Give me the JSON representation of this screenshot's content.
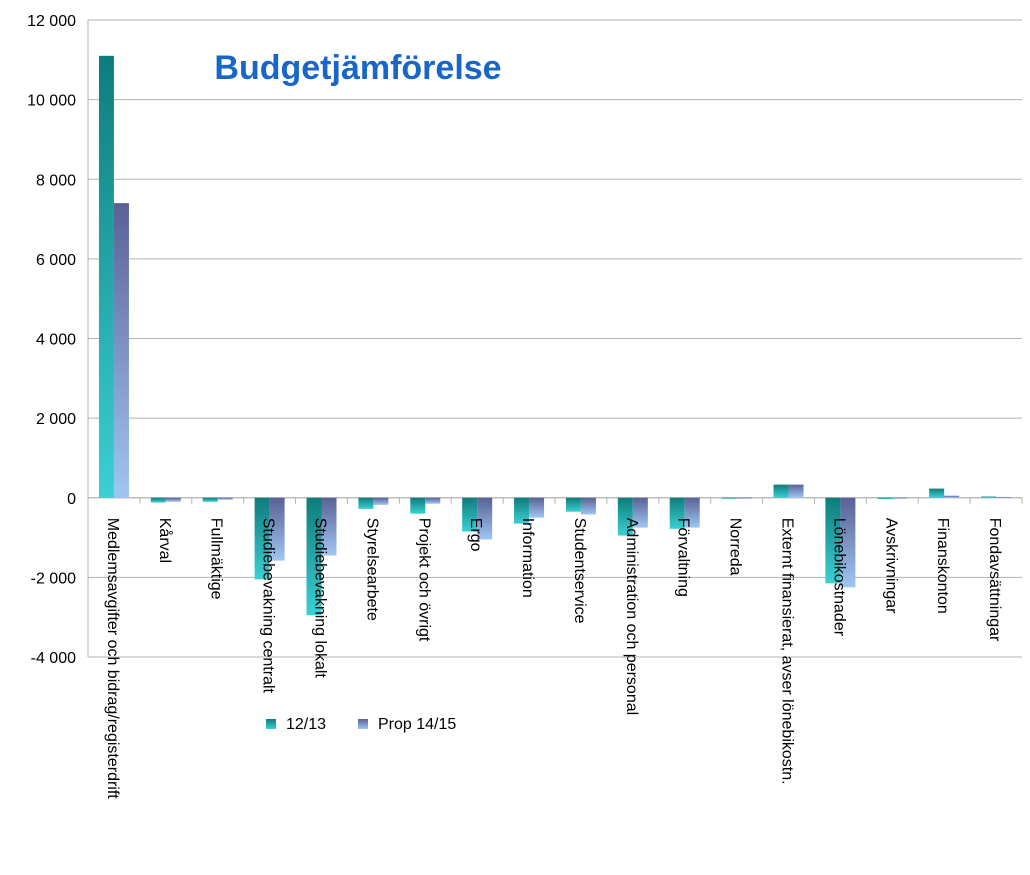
{
  "chart_data": {
    "type": "bar",
    "title": "Budgetjämförelse",
    "categories": [
      "Medlemsavgifter och bidrag/registerdrift",
      "Kårval",
      "Fullmäktige",
      "Studiebevakning centralt",
      "Studiebevakning lokalt",
      "Styrelsearbete",
      "Projekt och övrigt",
      "Ergo",
      "Information",
      "Studentservice",
      "Administration och personal",
      "Förvaltning",
      "Norreda",
      "Externt finansierat, avser lönebikostn.",
      "Lönebikostnader",
      "Avskrivningar",
      "Finanskonton",
      "Fondavsättningar"
    ],
    "series": [
      {
        "name": "12/13",
        "color": "#1aa7a7",
        "values": [
          11100,
          -120,
          -100,
          -2050,
          -2950,
          -280,
          -400,
          -850,
          -650,
          -350,
          -950,
          -780,
          -10,
          330,
          -2150,
          -30,
          230,
          30
        ]
      },
      {
        "name": "Prop 14/15",
        "color": "#7b86c8",
        "values": [
          7400,
          -100,
          -50,
          -1580,
          -1450,
          -180,
          -150,
          -1050,
          -500,
          -420,
          -750,
          -750,
          -10,
          330,
          -2250,
          -20,
          50,
          20
        ]
      }
    ],
    "ylim": [
      -4000,
      12000
    ],
    "yticks": [
      -4000,
      -2000,
      0,
      2000,
      4000,
      6000,
      8000,
      10000,
      12000
    ],
    "ytick_labels": [
      "-4 000",
      "-2 000",
      "0",
      "2 000",
      "4 000",
      "6 000",
      "8 000",
      "10 000",
      "12 000"
    ],
    "grid": true,
    "legend_position": "bottom-center"
  }
}
